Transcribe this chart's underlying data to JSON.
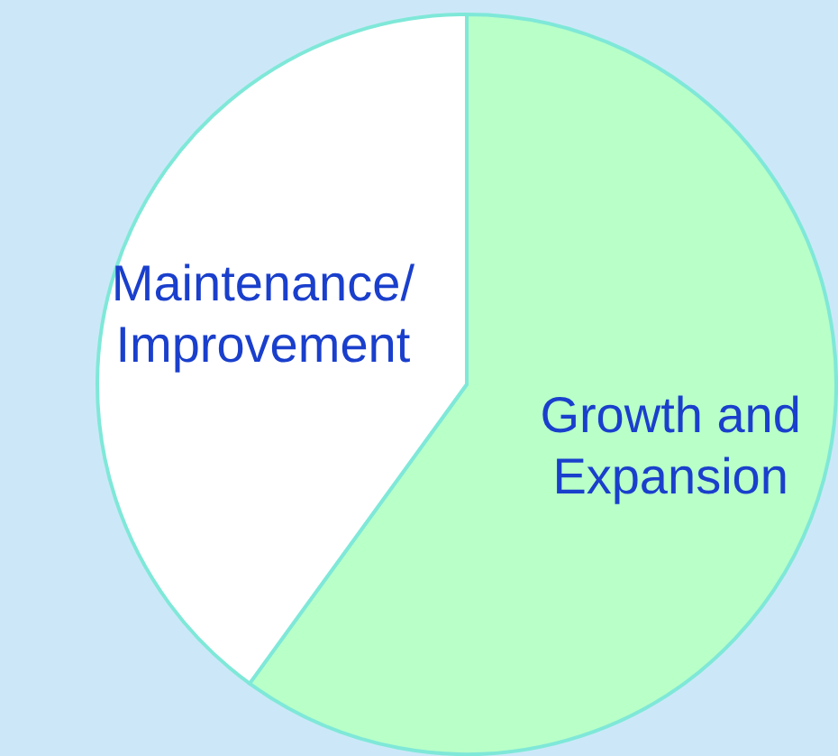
{
  "chart_data": {
    "type": "pie",
    "categories": [
      "Growth and\nExpansion",
      "Maintenance/\nImprovement"
    ],
    "values": [
      60,
      40
    ],
    "colors": [
      "#b8ffc8",
      "#ffffff"
    ]
  }
}
